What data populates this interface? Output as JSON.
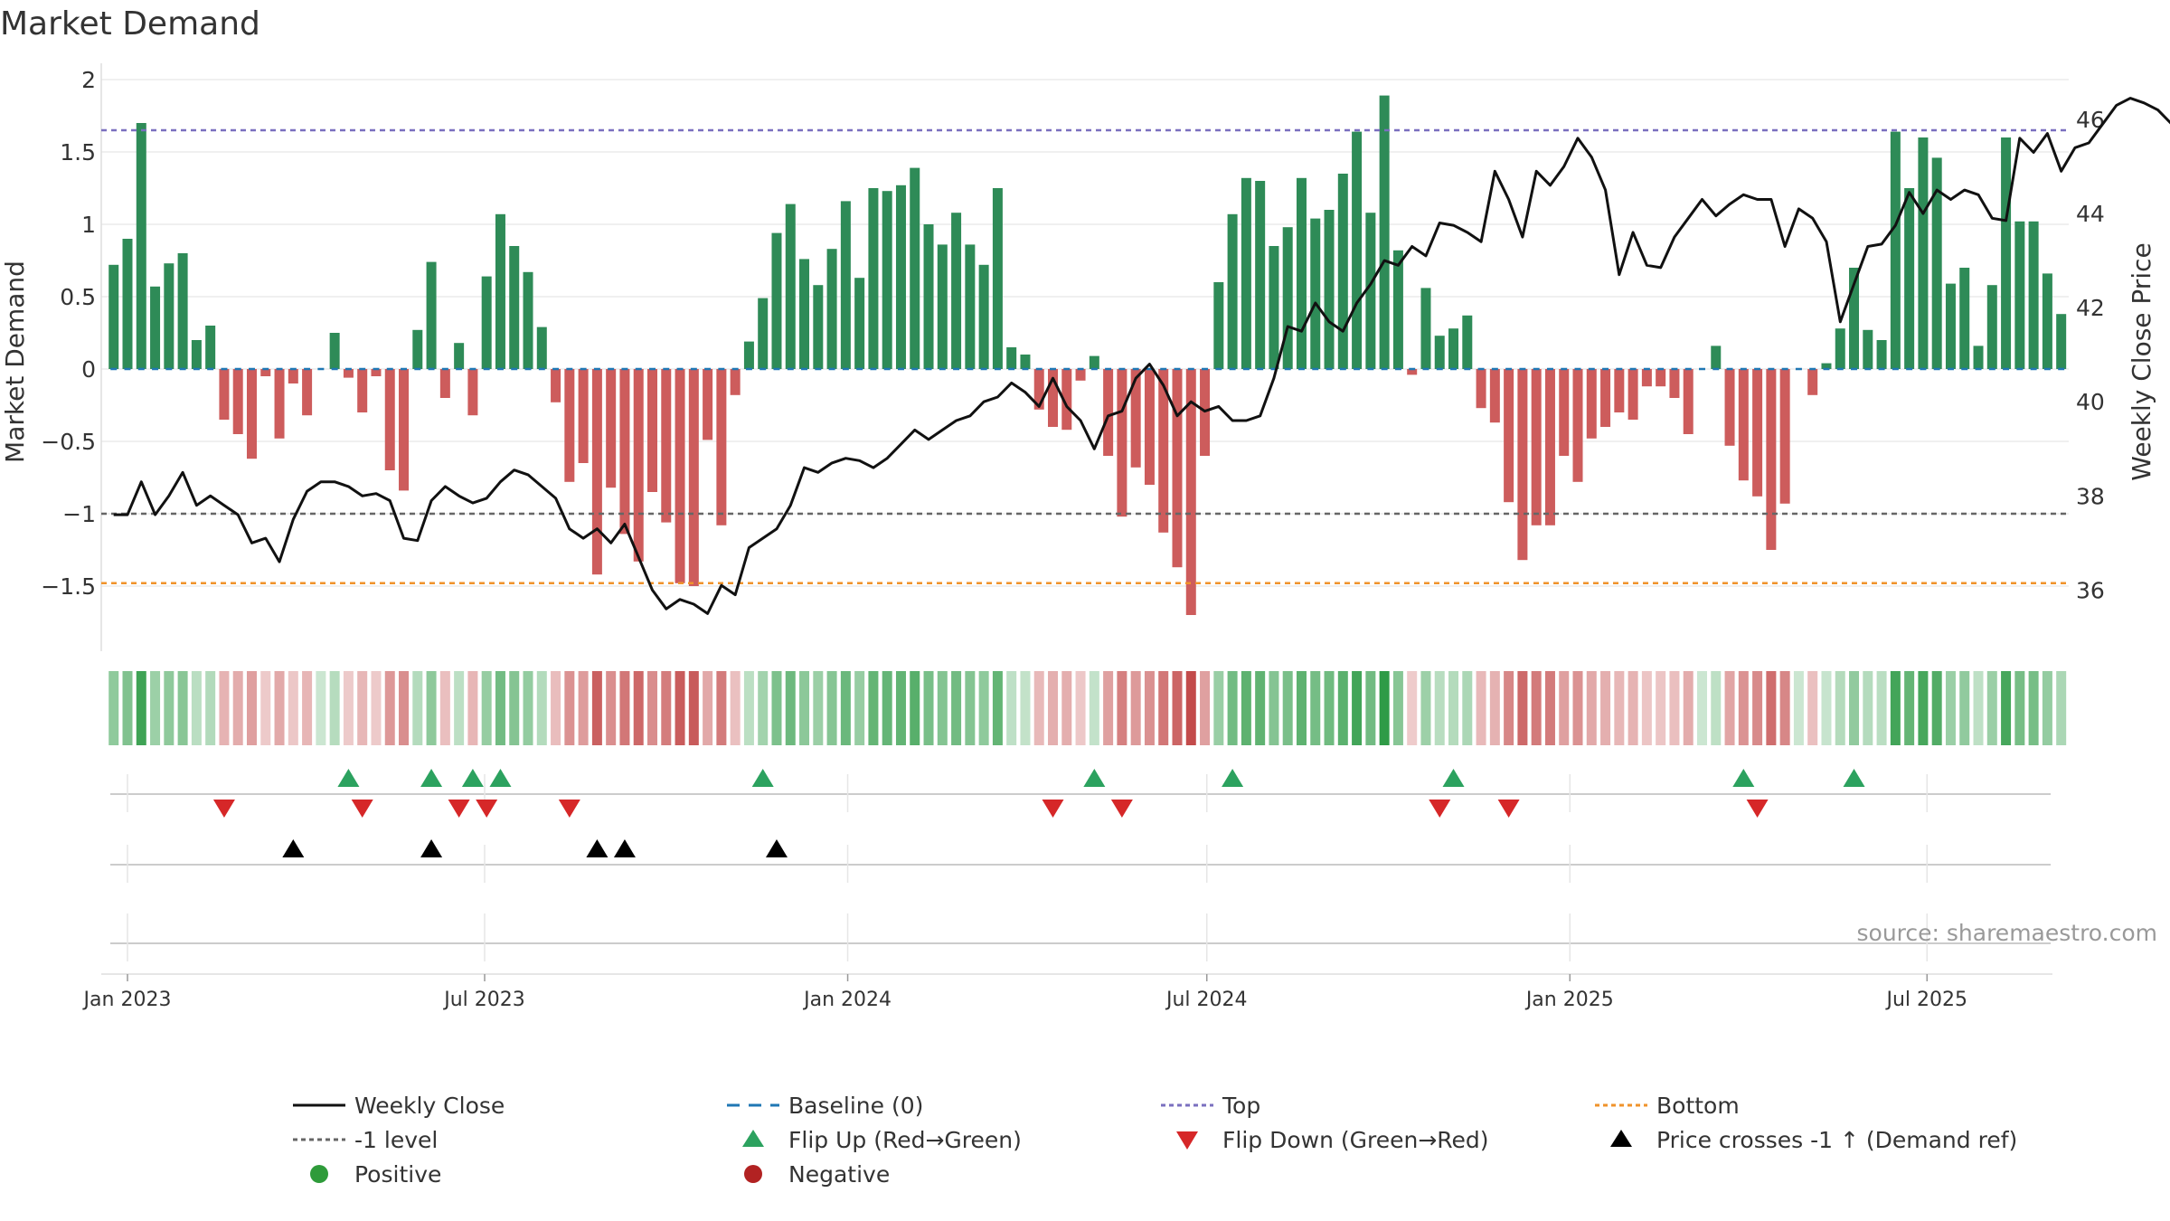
{
  "title": "Market Demand",
  "source": "source: sharemaestro.com",
  "colors": {
    "positive_bar": "#2e8b57",
    "negative_bar": "#cd5c5c",
    "price_line": "#111111",
    "top_line": "#7a6fbf",
    "minus1_line": "#666666",
    "bottom_line": "#f0932b",
    "baseline": "#1f77b4",
    "flip_up": "#2ca25f",
    "flip_down": "#d62728",
    "cross": "#000000"
  },
  "chart_data": {
    "type": "bar+line",
    "title": "Market Demand",
    "ylabel_left": "Market Demand",
    "ylabel_right": "Weekly Close Price",
    "ylim_left": [
      -1.95,
      2.05
    ],
    "ylim_right": [
      34.7,
      47.0
    ],
    "y_ticks_left": [
      {
        "v": 2,
        "label": "2"
      },
      {
        "v": 1.5,
        "label": "1.5"
      },
      {
        "v": 1,
        "label": "1"
      },
      {
        "v": 0.5,
        "label": "0.5"
      },
      {
        "v": 0,
        "label": "0"
      },
      {
        "v": -0.5,
        "label": "−0.5"
      },
      {
        "v": -1,
        "label": "−1"
      },
      {
        "v": -1.5,
        "label": "−1.5"
      }
    ],
    "y_ticks_right": [
      {
        "v": 46,
        "label": "46"
      },
      {
        "v": 44,
        "label": "44"
      },
      {
        "v": 42,
        "label": "42"
      },
      {
        "v": 40,
        "label": "40"
      },
      {
        "v": 38,
        "label": "38"
      },
      {
        "v": 36,
        "label": "36"
      }
    ],
    "x_start_date": "2022-12-25",
    "x_ticks": [
      {
        "date": "2023-01-01",
        "label": "Jan 2023"
      },
      {
        "date": "2023-07-01",
        "label": "Jul 2023"
      },
      {
        "date": "2024-01-01",
        "label": "Jan 2024"
      },
      {
        "date": "2024-07-01",
        "label": "Jul 2024"
      },
      {
        "date": "2025-01-01",
        "label": "Jan 2025"
      },
      {
        "date": "2025-07-01",
        "label": "Jul 2025"
      }
    ],
    "reference_lines": {
      "top": 1.65,
      "minus1": -1.0,
      "bottom": -1.48,
      "baseline": 0
    },
    "demand": [
      0.72,
      0.9,
      1.7,
      0.57,
      0.73,
      0.8,
      0.2,
      0.3,
      -0.35,
      -0.45,
      -0.62,
      -0.05,
      -0.48,
      -0.1,
      -0.32,
      0.0,
      0.25,
      -0.06,
      -0.3,
      -0.05,
      -0.7,
      -0.84,
      0.27,
      0.74,
      -0.2,
      0.18,
      -0.32,
      0.64,
      1.07,
      0.85,
      0.67,
      0.29,
      -0.23,
      -0.78,
      -0.65,
      -1.42,
      -0.82,
      -1.14,
      -1.33,
      -0.85,
      -1.06,
      -1.48,
      -1.5,
      -0.49,
      -1.08,
      -0.18,
      0.19,
      0.49,
      0.94,
      1.14,
      0.76,
      0.58,
      0.83,
      1.16,
      0.63,
      1.25,
      1.23,
      1.27,
      1.39,
      1.0,
      0.86,
      1.08,
      0.86,
      0.72,
      1.25,
      0.15,
      0.1,
      -0.28,
      -0.4,
      -0.42,
      -0.08,
      0.09,
      -0.6,
      -1.02,
      -0.68,
      -0.8,
      -1.13,
      -1.37,
      -1.7,
      -0.6,
      0.6,
      1.07,
      1.32,
      1.3,
      0.85,
      0.98,
      1.32,
      1.04,
      1.1,
      1.35,
      1.64,
      1.08,
      1.89,
      0.82,
      -0.04,
      0.56,
      0.23,
      0.28,
      0.37,
      -0.27,
      -0.37,
      -0.92,
      -1.32,
      -1.08,
      -1.08,
      -0.6,
      -0.78,
      -0.48,
      -0.4,
      -0.3,
      -0.35,
      -0.12,
      -0.12,
      -0.2,
      -0.45,
      0.0,
      0.16,
      -0.53,
      -0.77,
      -0.88,
      -1.25,
      -0.93,
      0.0,
      -0.18,
      0.04,
      0.28,
      0.7,
      0.27,
      0.2,
      1.64,
      1.25,
      1.6,
      1.46,
      0.59,
      0.7,
      0.16,
      0.58,
      1.6,
      1.02,
      1.02,
      0.66,
      0.38
    ],
    "price": [
      37.6,
      37.6,
      38.3,
      37.6,
      38.0,
      38.5,
      37.8,
      38.0,
      37.8,
      37.6,
      37.0,
      37.1,
      36.6,
      37.5,
      38.1,
      38.3,
      38.3,
      38.2,
      38.0,
      38.05,
      37.9,
      37.1,
      37.05,
      37.9,
      38.2,
      38.0,
      37.85,
      37.95,
      38.3,
      38.55,
      38.45,
      38.2,
      37.95,
      37.3,
      37.1,
      37.3,
      37.0,
      37.4,
      36.7,
      36.0,
      35.6,
      35.8,
      35.7,
      35.5,
      36.1,
      35.9,
      36.9,
      37.1,
      37.3,
      37.8,
      38.6,
      38.5,
      38.7,
      38.8,
      38.75,
      38.6,
      38.8,
      39.1,
      39.4,
      39.2,
      39.4,
      39.6,
      39.7,
      40.0,
      40.1,
      40.4,
      40.2,
      39.9,
      40.5,
      39.9,
      39.6,
      39.0,
      39.7,
      39.8,
      40.5,
      40.8,
      40.35,
      39.7,
      40.0,
      39.8,
      39.9,
      39.6,
      39.6,
      39.7,
      40.5,
      41.6,
      41.5,
      42.1,
      41.7,
      41.5,
      42.1,
      42.5,
      43.0,
      42.9,
      43.3,
      43.1,
      43.8,
      43.75,
      43.6,
      43.4,
      44.9,
      44.3,
      43.5,
      44.9,
      44.6,
      45.0,
      45.6,
      45.2,
      44.5,
      42.7,
      43.6,
      42.9,
      42.85,
      43.5,
      43.9,
      44.3,
      43.95,
      44.2,
      44.4,
      44.3,
      44.3,
      43.3,
      44.1,
      43.9,
      43.4,
      41.7,
      42.5,
      43.3,
      43.35,
      43.75,
      44.45,
      44.0,
      44.5,
      44.3,
      44.5,
      44.4,
      43.9,
      43.85,
      45.6,
      45.3,
      45.7,
      44.9,
      45.4,
      45.5,
      45.9,
      46.3,
      46.45,
      46.35,
      46.2,
      45.9
    ],
    "heat_strip": [
      0.72,
      0.9,
      1.7,
      0.57,
      0.73,
      0.8,
      0.2,
      0.3,
      -0.35,
      -0.45,
      -0.62,
      -0.05,
      -0.48,
      -0.1,
      -0.32,
      0.0,
      0.25,
      -0.06,
      -0.3,
      -0.05,
      -0.7,
      -0.84,
      0.27,
      0.74,
      -0.2,
      0.18,
      -0.32,
      0.64,
      1.07,
      0.85,
      0.67,
      0.29,
      -0.23,
      -0.78,
      -0.65,
      -1.42,
      -0.82,
      -1.14,
      -1.33,
      -0.85,
      -1.06,
      -1.48,
      -1.5,
      -0.49,
      -1.08,
      -0.18,
      0.19,
      0.49,
      0.94,
      1.14,
      0.76,
      0.58,
      0.83,
      1.16,
      0.63,
      1.25,
      1.23,
      1.27,
      1.39,
      1.0,
      0.86,
      1.08,
      0.86,
      0.72,
      1.25,
      0.15,
      0.1,
      -0.28,
      -0.4,
      -0.42,
      -0.08,
      0.09,
      -0.6,
      -1.02,
      -0.68,
      -0.8,
      -1.13,
      -1.37,
      -1.7,
      -0.6,
      0.6,
      1.07,
      1.32,
      1.3,
      0.85,
      0.98,
      1.32,
      1.04,
      1.1,
      1.35,
      1.64,
      1.08,
      1.89,
      0.82,
      -0.04,
      0.56,
      0.23,
      0.28,
      0.37,
      -0.27,
      -0.37,
      -0.92,
      -1.32,
      -1.08,
      -1.08,
      -0.6,
      -0.78,
      -0.48,
      -0.4,
      -0.3,
      -0.35,
      -0.12,
      -0.12,
      -0.2,
      -0.45,
      0.0,
      0.16,
      -0.53,
      -0.77,
      -0.88,
      -1.25,
      -0.93,
      0.0,
      -0.18,
      0.04,
      0.28,
      0.7,
      0.27,
      0.2,
      1.64,
      1.25,
      1.6,
      1.46,
      0.59,
      0.7,
      0.16,
      0.58,
      1.6,
      1.02,
      1.02,
      0.66,
      0.38
    ],
    "flip_up_weeks": [
      17,
      23,
      26,
      28,
      47,
      71,
      81,
      97,
      118,
      126
    ],
    "flip_down_weeks": [
      8,
      18,
      25,
      27,
      33,
      68,
      73,
      96,
      101,
      119
    ],
    "price_cross_weeks": [
      13,
      23,
      35,
      37,
      48
    ],
    "legend": [
      {
        "label": "Weekly Close",
        "symbol": "line",
        "color": "#111111"
      },
      {
        "label": "Baseline (0)",
        "symbol": "dash",
        "color": "#1f77b4"
      },
      {
        "label": "Top",
        "symbol": "dot",
        "color": "#7a6fbf"
      },
      {
        "label": "Bottom",
        "symbol": "dot",
        "color": "#f0932b"
      },
      {
        "label": "-1 level",
        "symbol": "dot",
        "color": "#666666"
      },
      {
        "label": "Flip Up (Red→Green)",
        "symbol": "tri-up",
        "color": "#2ca25f"
      },
      {
        "label": "Flip Down (Green→Red)",
        "symbol": "tri-down",
        "color": "#d62728"
      },
      {
        "label": "Price crosses -1 ↑ (Demand ref)",
        "symbol": "tri-up",
        "color": "#000000"
      },
      {
        "label": "Positive",
        "symbol": "circle",
        "color": "#2e9b3a"
      },
      {
        "label": "Negative",
        "symbol": "circle",
        "color": "#b22222"
      }
    ]
  }
}
